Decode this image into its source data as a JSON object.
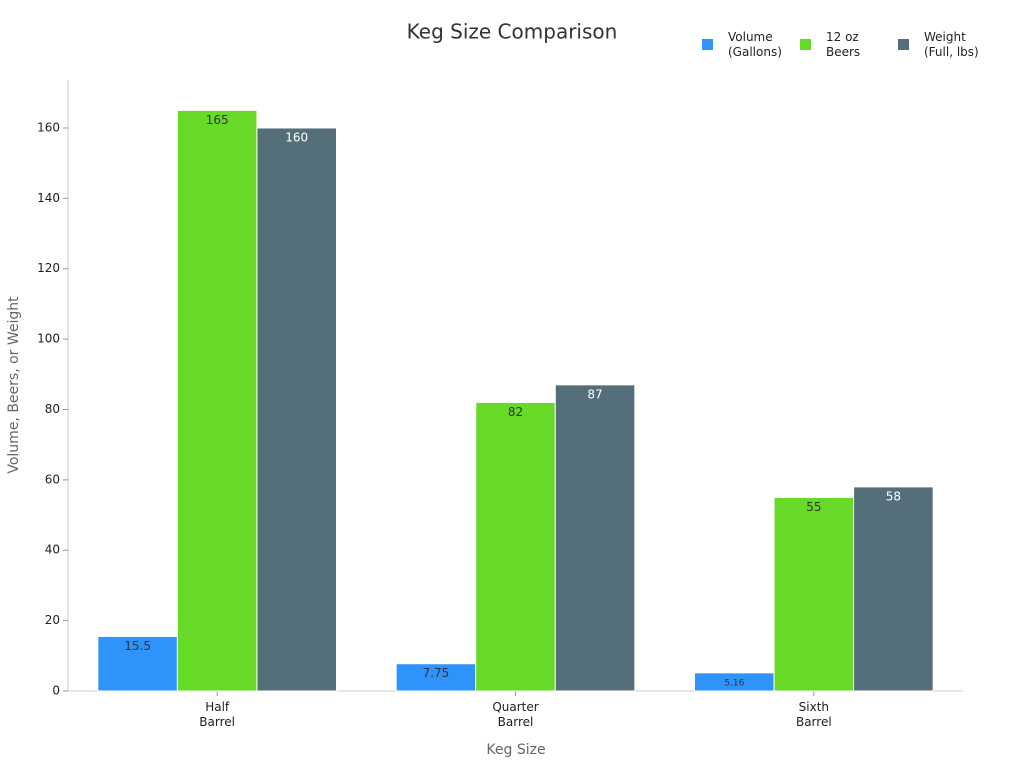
{
  "chart_data": {
    "type": "bar",
    "title": "Keg Size Comparison",
    "x_label": "Keg Size",
    "y_label": "Volume, Beers, or Weight",
    "categories": [
      "Half\nBarrel",
      "Quarter\nBarrel",
      "Sixth\nBarrel"
    ],
    "series": [
      {
        "name": "Volume\n(Gallons)",
        "color": "#2e93fa",
        "label_color": "#333333",
        "values": [
          15.5,
          7.75,
          5.16
        ]
      },
      {
        "name": "12 oz\nBeers",
        "color": "#66da26",
        "label_color": "#333333",
        "values": [
          165,
          82,
          55
        ]
      },
      {
        "name": "Weight\n(Full, lbs)",
        "color": "#546e7a",
        "label_color": "#ffffff",
        "values": [
          160,
          87,
          58
        ]
      }
    ],
    "ylim": [
      0,
      174
    ],
    "yticks": [
      0,
      20,
      40,
      60,
      80,
      100,
      120,
      140,
      160
    ],
    "legend": "top-right"
  }
}
